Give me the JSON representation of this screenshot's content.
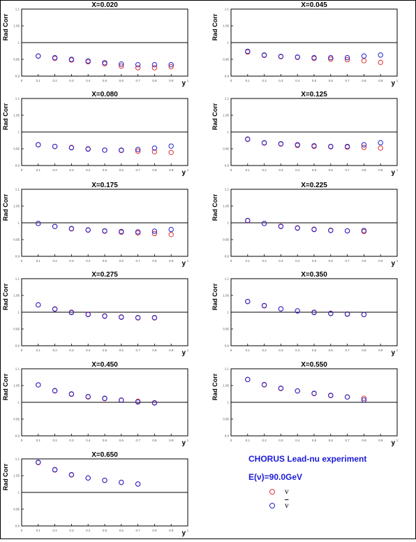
{
  "colors": {
    "nu": "#e03030",
    "nubar": "#2222d0",
    "axis": "#000000",
    "title": "#000000",
    "legend_text": "#1a1ad9"
  },
  "legend": {
    "title": "CHORUS Lead-nu experiment",
    "energy": "E(ν)=90.0GeV",
    "nu_label": "ν",
    "nubar_label": "ν"
  },
  "chart_data": [
    {
      "type": "scatter",
      "title": "X=0.020",
      "xlabel": "y",
      "ylabel": "Rad Corr",
      "xlim": [
        0,
        1
      ],
      "ylim": [
        0.9,
        1.1
      ],
      "hline": 1.0,
      "x_ticks": [
        "0",
        "0.1",
        "0.2",
        "0.3",
        "0.4",
        "0.5",
        "0.6",
        "0.7",
        "0.8",
        "0.9",
        "1"
      ],
      "y_ticks": [
        "0.9",
        "0.95",
        "1",
        "1.05",
        "1.1"
      ],
      "series": [
        {
          "name": "nu",
          "x": [
            0.1,
            0.2,
            0.3,
            0.4,
            0.5,
            0.6,
            0.7,
            0.8,
            0.9
          ],
          "y": [
            0.96,
            0.953,
            0.948,
            0.943,
            0.937,
            0.93,
            0.925,
            0.925,
            0.928
          ]
        },
        {
          "name": "nubar",
          "x": [
            0.1,
            0.2,
            0.3,
            0.4,
            0.5,
            0.6,
            0.7,
            0.8,
            0.9
          ],
          "y": [
            0.96,
            0.955,
            0.95,
            0.945,
            0.94,
            0.936,
            0.934,
            0.934,
            0.934
          ]
        }
      ]
    },
    {
      "type": "scatter",
      "title": "X=0.045",
      "xlabel": "y",
      "ylabel": "Rad Corr",
      "xlim": [
        0,
        1
      ],
      "ylim": [
        0.9,
        1.1
      ],
      "hline": 1.0,
      "x_ticks": [
        "0",
        "0.1",
        "0.2",
        "0.3",
        "0.4",
        "0.5",
        "0.6",
        "0.7",
        "0.8",
        "0.9",
        "1"
      ],
      "y_ticks": [
        "0.9",
        "0.95",
        "1",
        "1.05",
        "1.1"
      ],
      "series": [
        {
          "name": "nu",
          "x": [
            0.1,
            0.2,
            0.3,
            0.4,
            0.5,
            0.6,
            0.7,
            0.8,
            0.9
          ],
          "y": [
            0.972,
            0.962,
            0.958,
            0.956,
            0.953,
            0.951,
            0.949,
            0.946,
            0.941
          ]
        },
        {
          "name": "nubar",
          "x": [
            0.1,
            0.2,
            0.3,
            0.4,
            0.5,
            0.6,
            0.7,
            0.8,
            0.9
          ],
          "y": [
            0.974,
            0.963,
            0.959,
            0.957,
            0.955,
            0.955,
            0.955,
            0.96,
            0.963
          ]
        }
      ]
    },
    {
      "type": "scatter",
      "title": "X=0.080",
      "xlabel": "y",
      "ylabel": "Rad Corr",
      "xlim": [
        0,
        1
      ],
      "ylim": [
        0.9,
        1.1
      ],
      "hline": 1.0,
      "x_ticks": [
        "0",
        "0.1",
        "0.2",
        "0.3",
        "0.4",
        "0.5",
        "0.6",
        "0.7",
        "0.8",
        "0.9",
        "1"
      ],
      "y_ticks": [
        "0.9",
        "0.95",
        "1",
        "1.05",
        "1.1"
      ],
      "series": [
        {
          "name": "nu",
          "x": [
            0.1,
            0.2,
            0.3,
            0.4,
            0.5,
            0.6,
            0.7,
            0.8,
            0.9
          ],
          "y": [
            0.962,
            0.957,
            0.954,
            0.95,
            0.946,
            0.945,
            0.943,
            0.941,
            0.939
          ]
        },
        {
          "name": "nubar",
          "x": [
            0.1,
            0.2,
            0.3,
            0.4,
            0.5,
            0.6,
            0.7,
            0.8,
            0.9
          ],
          "y": [
            0.962,
            0.957,
            0.953,
            0.949,
            0.946,
            0.946,
            0.948,
            0.952,
            0.958
          ]
        }
      ]
    },
    {
      "type": "scatter",
      "title": "X=0.125",
      "xlabel": "y",
      "ylabel": "Rad Corr",
      "xlim": [
        0,
        1
      ],
      "ylim": [
        0.9,
        1.1
      ],
      "hline": 1.0,
      "x_ticks": [
        "0",
        "0.1",
        "0.2",
        "0.3",
        "0.4",
        "0.5",
        "0.6",
        "0.7",
        "0.8",
        "0.9",
        "1"
      ],
      "y_ticks": [
        "0.9",
        "0.95",
        "1",
        "1.05",
        "1.1"
      ],
      "series": [
        {
          "name": "nu",
          "x": [
            0.1,
            0.2,
            0.3,
            0.4,
            0.5,
            0.6,
            0.7,
            0.8,
            0.9
          ],
          "y": [
            0.978,
            0.967,
            0.964,
            0.96,
            0.957,
            0.956,
            0.955,
            0.954,
            0.952
          ]
        },
        {
          "name": "nubar",
          "x": [
            0.1,
            0.2,
            0.3,
            0.4,
            0.5,
            0.6,
            0.7,
            0.8,
            0.9
          ],
          "y": [
            0.979,
            0.968,
            0.965,
            0.962,
            0.959,
            0.957,
            0.957,
            0.962,
            0.968
          ]
        }
      ]
    },
    {
      "type": "scatter",
      "title": "X=0.175",
      "xlabel": "y",
      "ylabel": "Rad Corr",
      "xlim": [
        0,
        1
      ],
      "ylim": [
        0.9,
        1.1
      ],
      "hline": 1.0,
      "x_ticks": [
        "0",
        "0.1",
        "0.2",
        "0.3",
        "0.4",
        "0.5",
        "0.6",
        "0.7",
        "0.8",
        "0.9",
        "1"
      ],
      "y_ticks": [
        "0.9",
        "0.95",
        "1",
        "1.05",
        "1.1"
      ],
      "series": [
        {
          "name": "nu",
          "x": [
            0.1,
            0.2,
            0.3,
            0.4,
            0.5,
            0.6,
            0.7,
            0.8,
            0.9
          ],
          "y": [
            0.998,
            0.989,
            0.982,
            0.978,
            0.975,
            0.972,
            0.97,
            0.968,
            0.965
          ]
        },
        {
          "name": "nubar",
          "x": [
            0.1,
            0.2,
            0.3,
            0.4,
            0.5,
            0.6,
            0.7,
            0.8,
            0.9
          ],
          "y": [
            0.998,
            0.989,
            0.983,
            0.979,
            0.976,
            0.974,
            0.973,
            0.975,
            0.98
          ]
        }
      ]
    },
    {
      "type": "scatter",
      "title": "X=0.225",
      "xlabel": "y",
      "ylabel": "Rad Corr",
      "xlim": [
        0,
        1
      ],
      "ylim": [
        0.9,
        1.1
      ],
      "hline": 1.0,
      "x_ticks": [
        "0",
        "0.1",
        "0.2",
        "0.3",
        "0.4",
        "0.5",
        "0.6",
        "0.7",
        "0.8",
        "0.9",
        "1"
      ],
      "y_ticks": [
        "0.9",
        "0.95",
        "1",
        "1.05",
        "1.1"
      ],
      "series": [
        {
          "name": "nu",
          "x": [
            0.1,
            0.2,
            0.3,
            0.4,
            0.5,
            0.6,
            0.7,
            0.8
          ],
          "y": [
            1.006,
            0.998,
            0.99,
            0.985,
            0.981,
            0.978,
            0.976,
            0.974
          ]
        },
        {
          "name": "nubar",
          "x": [
            0.1,
            0.2,
            0.3,
            0.4,
            0.5,
            0.6,
            0.7,
            0.8
          ],
          "y": [
            1.007,
            0.998,
            0.989,
            0.984,
            0.98,
            0.977,
            0.976,
            0.977
          ]
        }
      ]
    },
    {
      "type": "scatter",
      "title": "X=0.275",
      "xlabel": "y",
      "ylabel": "Rad Corr",
      "xlim": [
        0,
        1
      ],
      "ylim": [
        0.9,
        1.1
      ],
      "hline": 1.0,
      "x_ticks": [
        "0",
        "0.1",
        "0.2",
        "0.3",
        "0.4",
        "0.5",
        "0.6",
        "0.7",
        "0.8",
        "0.9",
        "1"
      ],
      "y_ticks": [
        "0.9",
        "0.95",
        "1",
        "1.05",
        "1.1"
      ],
      "series": [
        {
          "name": "nu",
          "x": [
            0.1,
            0.2,
            0.3,
            0.4,
            0.5,
            0.6,
            0.7,
            0.8
          ],
          "y": [
            1.022,
            1.01,
            1.0,
            0.994,
            0.989,
            0.986,
            0.983,
            0.983
          ]
        },
        {
          "name": "nubar",
          "x": [
            0.1,
            0.2,
            0.3,
            0.4,
            0.5,
            0.6,
            0.7,
            0.8
          ],
          "y": [
            1.022,
            1.009,
            0.999,
            0.993,
            0.988,
            0.985,
            0.984,
            0.984
          ]
        }
      ]
    },
    {
      "type": "scatter",
      "title": "X=0.350",
      "xlabel": "y",
      "ylabel": "Rad Corr",
      "xlim": [
        0,
        1
      ],
      "ylim": [
        0.9,
        1.1
      ],
      "hline": 1.0,
      "x_ticks": [
        "0",
        "0.1",
        "0.2",
        "0.3",
        "0.4",
        "0.5",
        "0.6",
        "0.7",
        "0.8",
        "0.9",
        "1"
      ],
      "y_ticks": [
        "0.9",
        "0.95",
        "1",
        "1.05",
        "1.1"
      ],
      "series": [
        {
          "name": "nu",
          "x": [
            0.1,
            0.2,
            0.3,
            0.4,
            0.5,
            0.6,
            0.7,
            0.8
          ],
          "y": [
            1.032,
            1.019,
            1.01,
            1.004,
            1.0,
            0.997,
            0.995,
            0.993
          ]
        },
        {
          "name": "nubar",
          "x": [
            0.1,
            0.2,
            0.3,
            0.4,
            0.5,
            0.6,
            0.7,
            0.8
          ],
          "y": [
            1.032,
            1.02,
            1.01,
            1.004,
            0.999,
            0.996,
            0.994,
            0.993
          ]
        }
      ]
    },
    {
      "type": "scatter",
      "title": "X=0.450",
      "xlabel": "y",
      "ylabel": "Rad Corr",
      "xlim": [
        0,
        1
      ],
      "ylim": [
        0.9,
        1.1
      ],
      "hline": 1.0,
      "x_ticks": [
        "0",
        "0.1",
        "0.2",
        "0.3",
        "0.4",
        "0.5",
        "0.6",
        "0.7",
        "0.8",
        "0.9",
        "1"
      ],
      "y_ticks": [
        "0.9",
        "0.95",
        "1",
        "1.05",
        "1.1"
      ],
      "series": [
        {
          "name": "nu",
          "x": [
            0.1,
            0.2,
            0.3,
            0.4,
            0.5,
            0.6,
            0.7,
            0.8
          ],
          "y": [
            1.052,
            1.034,
            1.024,
            1.016,
            1.011,
            1.007,
            1.003,
            0.999
          ]
        },
        {
          "name": "nubar",
          "x": [
            0.1,
            0.2,
            0.3,
            0.4,
            0.5,
            0.6,
            0.7,
            0.8
          ],
          "y": [
            1.052,
            1.035,
            1.025,
            1.017,
            1.012,
            1.006,
            1.001,
            0.998
          ]
        }
      ]
    },
    {
      "type": "scatter",
      "title": "X=0.550",
      "xlabel": "y",
      "ylabel": "Rad Corr",
      "xlim": [
        0,
        1
      ],
      "ylim": [
        0.9,
        1.1
      ],
      "hline": 1.0,
      "x_ticks": [
        "0",
        "0.1",
        "0.2",
        "0.3",
        "0.4",
        "0.5",
        "0.6",
        "0.7",
        "0.8",
        "0.9",
        "1"
      ],
      "y_ticks": [
        "0.9",
        "0.95",
        "1",
        "1.05",
        "1.1"
      ],
      "series": [
        {
          "name": "nu",
          "x": [
            0.1,
            0.2,
            0.3,
            0.4,
            0.5,
            0.6,
            0.7,
            0.8
          ],
          "y": [
            1.068,
            1.052,
            1.041,
            1.034,
            1.026,
            1.02,
            1.016,
            1.012
          ]
        },
        {
          "name": "nubar",
          "x": [
            0.1,
            0.2,
            0.3,
            0.4,
            0.5,
            0.6,
            0.7,
            0.8
          ],
          "y": [
            1.068,
            1.053,
            1.042,
            1.034,
            1.027,
            1.021,
            1.016,
            1.007
          ]
        }
      ]
    },
    {
      "type": "scatter",
      "title": "X=0.650",
      "xlabel": "y",
      "ylabel": "Rad Corr",
      "xlim": [
        0,
        1
      ],
      "ylim": [
        0.9,
        1.1
      ],
      "hline": 1.0,
      "x_ticks": [
        "0",
        "0.1",
        "0.2",
        "0.3",
        "0.4",
        "0.5",
        "0.6",
        "0.7",
        "0.8",
        "0.9",
        "1"
      ],
      "y_ticks": [
        "0.9",
        "0.95",
        "1",
        "1.05",
        "1.1"
      ],
      "series": [
        {
          "name": "nu",
          "x": [
            0.1,
            0.2,
            0.3,
            0.4,
            0.5,
            0.6,
            0.7
          ],
          "y": [
            1.089,
            1.067,
            1.052,
            1.043,
            1.036,
            1.03,
            1.025
          ]
        },
        {
          "name": "nubar",
          "x": [
            0.1,
            0.2,
            0.3,
            0.4,
            0.5,
            0.6,
            0.7
          ],
          "y": [
            1.09,
            1.068,
            1.053,
            1.043,
            1.036,
            1.03,
            1.025
          ]
        }
      ]
    }
  ]
}
